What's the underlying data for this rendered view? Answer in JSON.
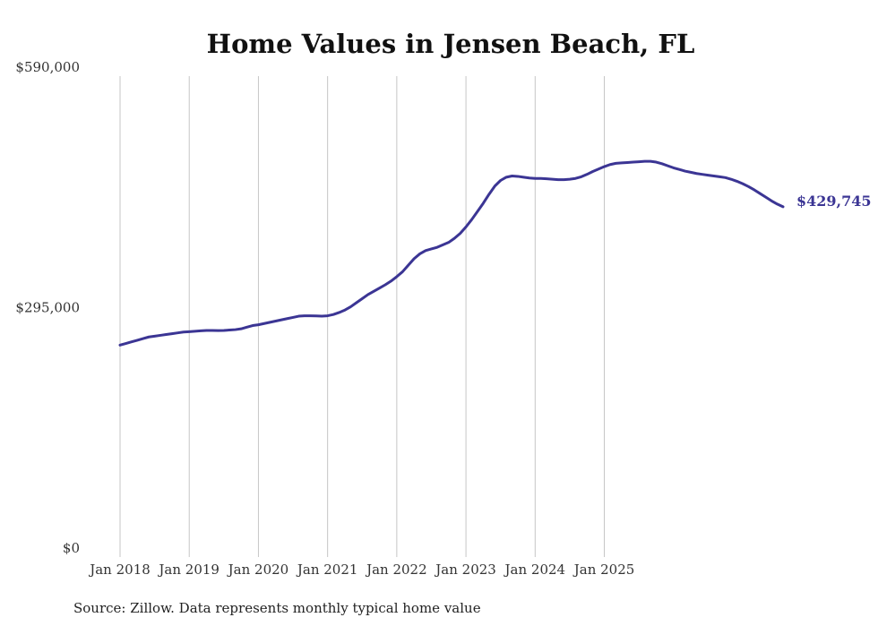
{
  "chart_data": {
    "type": "line",
    "title": "Home Values in Jensen Beach, FL",
    "source": "Source: Zillow. Data represents monthly typical home value",
    "xlabel": "",
    "ylabel": "",
    "x_start": "2018-01",
    "x_ticks": [
      "Jan 2018",
      "Jan 2019",
      "Jan 2020",
      "Jan 2021",
      "Jan 2022",
      "Jan 2023",
      "Jan 2024",
      "Jan 2025"
    ],
    "y_ticks": [
      "$0",
      "$295,000",
      "$590,000"
    ],
    "ylim": [
      0,
      590000
    ],
    "grid": "vertical",
    "line_color": "#3b3594",
    "end_label": "$429,745",
    "series": [
      {
        "values": [
          260000,
          262000,
          264000,
          266000,
          268000,
          270000,
          271000,
          272000,
          273000,
          274000,
          275000,
          276000,
          276500,
          277000,
          277500,
          278000,
          278000,
          277800,
          278000,
          278500,
          279000,
          280000,
          282000,
          284000,
          285000,
          286500,
          288000,
          289500,
          291000,
          292500,
          294000,
          295500,
          296000,
          296000,
          295800,
          295600,
          296000,
          297500,
          300000,
          303000,
          307000,
          312000,
          317000,
          322000,
          326000,
          330000,
          334000,
          338500,
          344000,
          350000,
          358000,
          366000,
          372000,
          376000,
          378000,
          380000,
          383000,
          386000,
          391000,
          397000,
          405000,
          414000,
          424000,
          434000,
          445000,
          455000,
          462000,
          466000,
          467500,
          467000,
          466000,
          465000,
          464500,
          464500,
          464000,
          463500,
          463000,
          463000,
          463500,
          464500,
          466500,
          469500,
          473000,
          476000,
          479000,
          481500,
          483000,
          483500,
          484000,
          484500,
          485000,
          485500,
          485500,
          484500,
          482500,
          480000,
          477500,
          475500,
          473500,
          472000,
          470500,
          469500,
          468500,
          467500,
          466500,
          465500,
          463500,
          461000,
          458000,
          454500,
          450500,
          446000,
          441500,
          437000,
          433000,
          429745
        ]
      }
    ]
  }
}
